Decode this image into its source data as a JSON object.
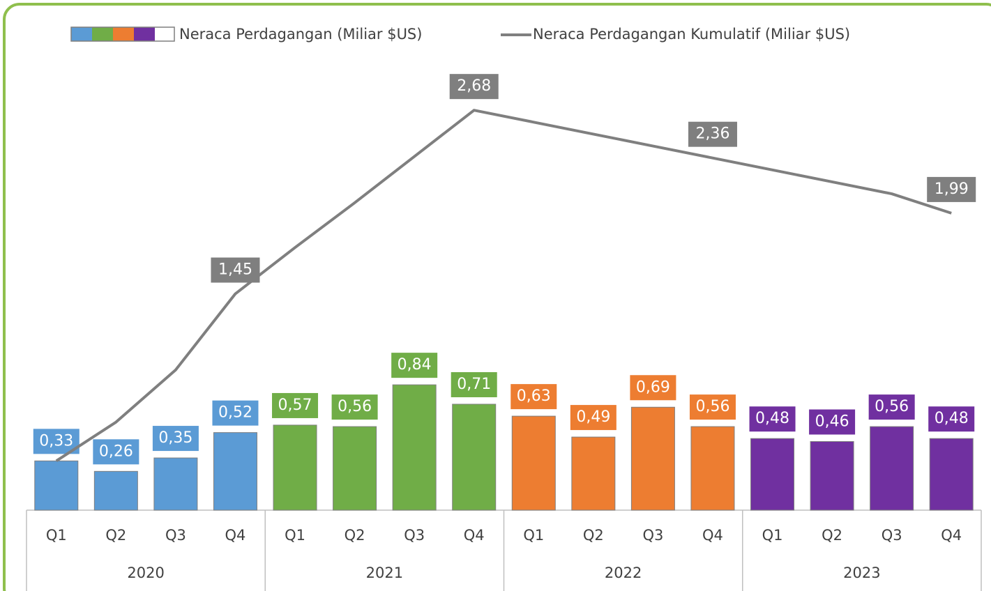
{
  "chart_data": {
    "type": "bar",
    "categories": [
      "Q1",
      "Q2",
      "Q3",
      "Q4",
      "Q1",
      "Q2",
      "Q3",
      "Q4",
      "Q1",
      "Q2",
      "Q3",
      "Q4",
      "Q1",
      "Q2",
      "Q3",
      "Q4"
    ],
    "groups": [
      {
        "label": "2020",
        "color": "#5b9bd5"
      },
      {
        "label": "2021",
        "color": "#70ad47"
      },
      {
        "label": "2022",
        "color": "#ed7d31"
      },
      {
        "label": "2023",
        "color": "#7030a0"
      }
    ],
    "series": [
      {
        "name": "Neraca Perdagangan (Miliar $US)",
        "type": "bar",
        "values": [
          0.33,
          0.26,
          0.35,
          0.52,
          0.57,
          0.56,
          0.84,
          0.71,
          0.63,
          0.49,
          0.69,
          0.56,
          0.48,
          0.46,
          0.56,
          0.48
        ],
        "value_labels": [
          "0,33",
          "0,26",
          "0,35",
          "0,52",
          "0,57",
          "0,56",
          "0,84",
          "0,71",
          "0,63",
          "0,49",
          "0,69",
          "0,56",
          "0,48",
          "0,46",
          "0,56",
          "0,48"
        ]
      },
      {
        "name": "Neraca Perdagangan Kumulatif (Miliar $US)",
        "type": "line",
        "color": "#7f7f7f",
        "values": [
          0.33,
          0.59,
          0.94,
          1.45,
          1.76,
          2.06,
          2.37,
          2.68,
          2.6,
          2.52,
          2.44,
          2.36,
          2.28,
          2.2,
          2.12,
          1.99
        ],
        "value_labels": [
          null,
          null,
          null,
          "1,45",
          null,
          null,
          null,
          "2,68",
          null,
          null,
          null,
          "2,36",
          null,
          null,
          null,
          "1,99"
        ]
      }
    ],
    "ylim": [
      0,
      3.4
    ]
  }
}
